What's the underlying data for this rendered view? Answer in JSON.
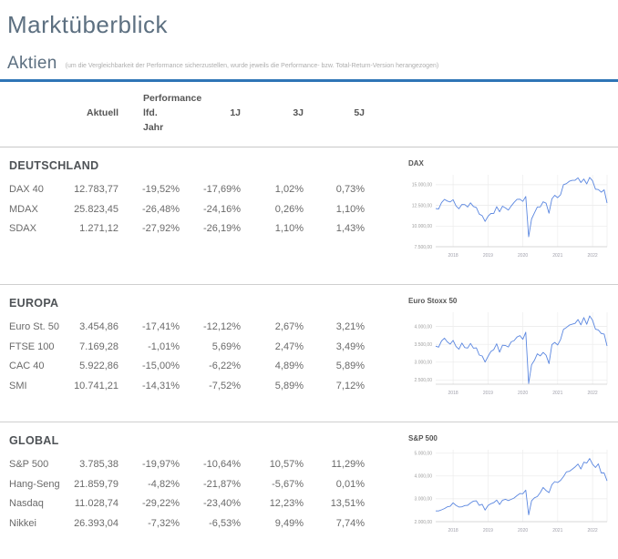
{
  "page": {
    "title": "Marktüberblick",
    "section_title": "Aktien",
    "note": "(um die Vergleichbarkeit der Performance sicherzustellen, wurde jeweils die Performance- bzw. Total-Return-Version herangezogen)",
    "accent_color": "#2e75b6"
  },
  "table_header": {
    "group_label": "Performance",
    "columns": [
      "Aktuell",
      "lfd. Jahr",
      "1J",
      "3J",
      "5J"
    ]
  },
  "sections": [
    {
      "heading": "DEUTSCHLAND",
      "rows": [
        {
          "name": "DAX 40",
          "values": [
            "12.783,77",
            "-19,52%",
            "-17,69%",
            "1,02%",
            "0,73%"
          ]
        },
        {
          "name": "MDAX",
          "values": [
            "25.823,45",
            "-26,48%",
            "-24,16%",
            "0,26%",
            "1,10%"
          ]
        },
        {
          "name": "SDAX",
          "values": [
            "1.271,12",
            "-27,92%",
            "-26,19%",
            "1,10%",
            "1,43%"
          ]
        }
      ]
    },
    {
      "heading": "EUROPA",
      "rows": [
        {
          "name": "Euro St. 50",
          "values": [
            "3.454,86",
            "-17,41%",
            "-12,12%",
            "2,67%",
            "3,21%"
          ]
        },
        {
          "name": "FTSE 100",
          "values": [
            "7.169,28",
            "-1,01%",
            "5,69%",
            "2,47%",
            "3,49%"
          ]
        },
        {
          "name": "CAC 40",
          "values": [
            "5.922,86",
            "-15,00%",
            "-6,22%",
            "4,89%",
            "5,89%"
          ]
        },
        {
          "name": "SMI",
          "values": [
            "10.741,21",
            "-14,31%",
            "-7,52%",
            "5,89%",
            "7,12%"
          ]
        }
      ]
    },
    {
      "heading": "GLOBAL",
      "rows": [
        {
          "name": "S&P 500",
          "values": [
            "3.785,38",
            "-19,97%",
            "-10,64%",
            "10,57%",
            "11,29%"
          ]
        },
        {
          "name": "Hang-Seng",
          "values": [
            "21.859,79",
            "-4,82%",
            "-21,87%",
            "-5,67%",
            "0,01%"
          ]
        },
        {
          "name": "Nasdaq",
          "values": [
            "11.028,74",
            "-29,22%",
            "-23,40%",
            "12,23%",
            "13,51%"
          ]
        },
        {
          "name": "Nikkei",
          "values": [
            "26.393,04",
            "-7,32%",
            "-6,53%",
            "9,49%",
            "7,74%"
          ]
        }
      ]
    }
  ],
  "chart_data": [
    {
      "type": "line",
      "title": "DAX",
      "line_color": "#5b87e0",
      "ylim": [
        7500,
        16200
      ],
      "y_tick_values": [
        15000,
        12500,
        10000,
        7500
      ],
      "y_tick_labels": [
        "15.000,00",
        "12.500,00",
        "10.000,00",
        "7.500,00"
      ],
      "x_tick_labels": [
        "2018",
        "2019",
        "2020",
        "2021",
        "2022"
      ],
      "x_tick_indices": [
        6,
        18,
        30,
        42,
        54
      ],
      "values": [
        12118,
        12056,
        12829,
        13230,
        13024,
        12918,
        13189,
        12436,
        12097,
        12612,
        12604,
        12306,
        12806,
        12364,
        12247,
        11447,
        11257,
        10559,
        11173,
        11516,
        11526,
        12344,
        11727,
        12399,
        12189,
        11939,
        12428,
        12867,
        13236,
        13249,
        12982,
        13580,
        8700,
        10862,
        11587,
        12311,
        12313,
        12945,
        12761,
        11556,
        13291,
        13719,
        13433,
        13786,
        15008,
        15136,
        15421,
        15531,
        15544,
        15835,
        15261,
        15689,
        15100,
        15885,
        15471,
        14461,
        14415,
        14098,
        14388,
        12784
      ]
    },
    {
      "type": "line",
      "title": "Euro Stoxx 50",
      "line_color": "#5b87e0",
      "ylim": [
        2380,
        4400
      ],
      "y_tick_values": [
        4000,
        3500,
        3000,
        2500
      ],
      "y_tick_labels": [
        "4.000,00",
        "3.500,00",
        "3.000,00",
        "2.500,00"
      ],
      "x_tick_labels": [
        "2018",
        "2019",
        "2020",
        "2021",
        "2022"
      ],
      "x_tick_indices": [
        6,
        18,
        30,
        42,
        54
      ],
      "values": [
        3449,
        3421,
        3595,
        3674,
        3570,
        3504,
        3609,
        3439,
        3362,
        3537,
        3407,
        3396,
        3525,
        3393,
        3399,
        3198,
        3173,
        3001,
        3159,
        3298,
        3352,
        3515,
        3280,
        3474,
        3467,
        3427,
        3569,
        3604,
        3704,
        3745,
        3641,
        3840,
        2400,
        2928,
        3050,
        3234,
        3174,
        3273,
        3193,
        2958,
        3493,
        3553,
        3481,
        3636,
        3919,
        3974,
        4039,
        4064,
        4089,
        4196,
        4048,
        4251,
        4063,
        4298,
        4175,
        3924,
        3903,
        3803,
        3789,
        3455
      ]
    },
    {
      "type": "line",
      "title": "S&P 500",
      "line_color": "#5b87e0",
      "ylim": [
        2000,
        5150
      ],
      "y_tick_values": [
        5000,
        4000,
        3000,
        2000
      ],
      "y_tick_labels": [
        "5.000,00",
        "4.000,00",
        "3.000,00",
        "2.000,00"
      ],
      "x_tick_labels": [
        "2018",
        "2019",
        "2020",
        "2021",
        "2022"
      ],
      "x_tick_indices": [
        6,
        18,
        30,
        42,
        54
      ],
      "values": [
        2470,
        2472,
        2519,
        2575,
        2648,
        2674,
        2824,
        2714,
        2641,
        2648,
        2705,
        2718,
        2816,
        2902,
        2914,
        2712,
        2760,
        2507,
        2704,
        2784,
        2834,
        2946,
        2752,
        2942,
        2980,
        2926,
        2977,
        3038,
        3141,
        3231,
        3226,
        3380,
        2300,
        2912,
        3044,
        3100,
        3271,
        3500,
        3363,
        3270,
        3622,
        3756,
        3714,
        3811,
        3973,
        4181,
        4204,
        4297,
        4395,
        4523,
        4308,
        4605,
        4567,
        4766,
        4516,
        4374,
        4530,
        4132,
        4132,
        3785
      ]
    }
  ]
}
